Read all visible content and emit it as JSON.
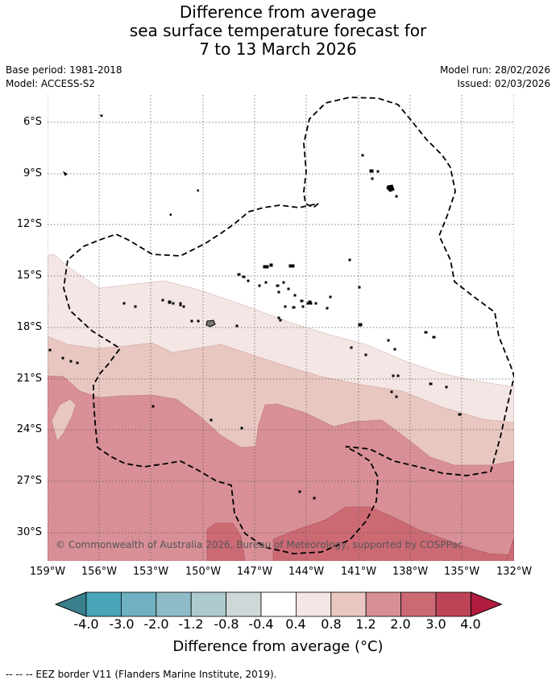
{
  "title": {
    "line1": "Difference from average",
    "line2": "sea surface temperature forecast for",
    "line3": "7 to 13 March 2026"
  },
  "meta": {
    "base_period": "Base period: 1981-2018",
    "model": "Model: ACCESS-S2",
    "model_run": "Model run: 28/02/2026",
    "issued": "Issued: 02/03/2026"
  },
  "map": {
    "copyright": "© Commonwealth of Australia 2026, Bureau of Meteorology, supported by COSPPac",
    "lat_labels": [
      "6°S",
      "9°S",
      "12°S",
      "15°S",
      "18°S",
      "21°S",
      "24°S",
      "27°S",
      "30°S"
    ],
    "lon_labels": [
      "159°W",
      "156°W",
      "153°W",
      "150°W",
      "147°W",
      "144°W",
      "141°W",
      "138°W",
      "135°W",
      "132°W"
    ]
  },
  "colorbar": {
    "ticks": [
      "-4.0",
      "-3.0",
      "-2.0",
      "-1.2",
      "-0.8",
      "-0.4",
      "0.4",
      "0.8",
      "1.2",
      "2.0",
      "3.0",
      "4.0"
    ],
    "colors": [
      "#3a7f8c",
      "#4aa5b8",
      "#6fb0c1",
      "#8dbcc8",
      "#adcbcf",
      "#cfd7d9",
      "#ffffff",
      "#f4e6e4",
      "#e8c7c1",
      "#d88f96",
      "#cc6a74",
      "#bd4456",
      "#b01c3e"
    ],
    "title": "Difference from average (°C)"
  },
  "footer": "--  --  -- EEZ border V11 (Flanders Marine Institute, 2019)."
}
